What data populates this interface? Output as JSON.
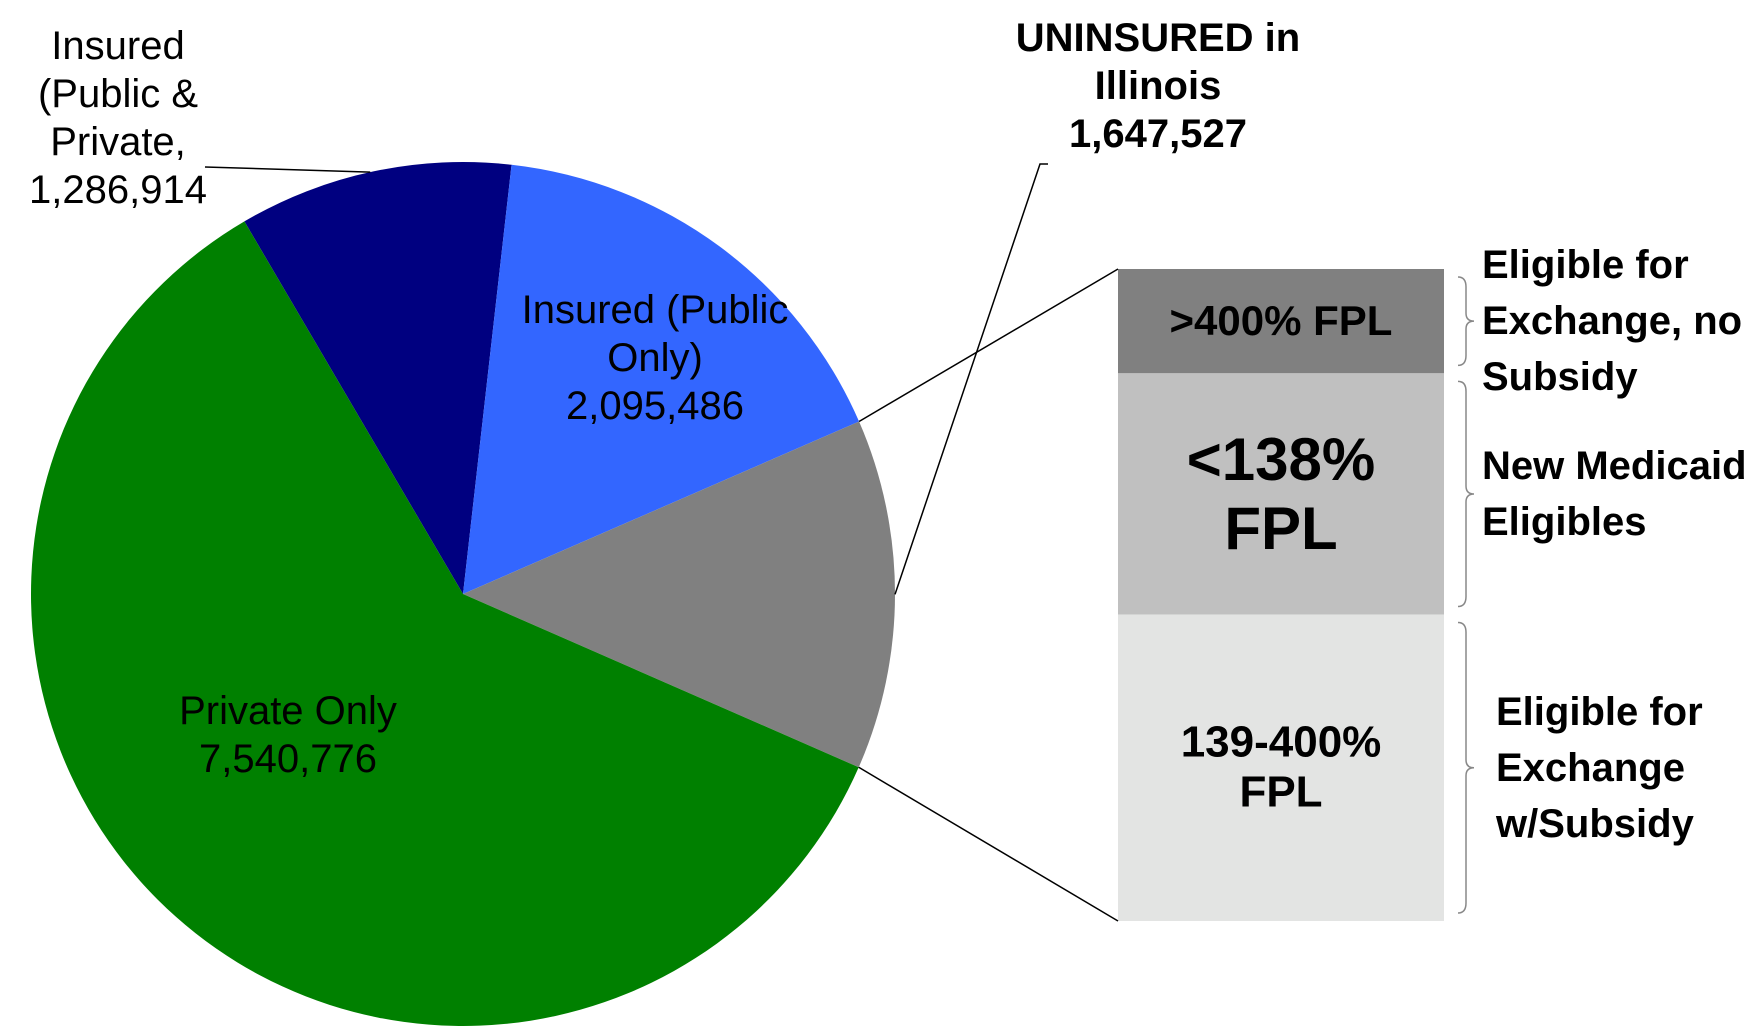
{
  "chart_data": {
    "type": "pie",
    "categories": [
      "Insured (Public & Private,",
      "Insured (Public Only)",
      "UNINSURED in Illinois",
      "Private Only"
    ],
    "values": [
      1286914,
      2095486,
      1647527,
      7540776
    ],
    "value_labels": [
      "1,286,914",
      "2,095,486",
      "1,647,527",
      "7,540,776"
    ],
    "colors": [
      "#000080",
      "#3366ff",
      "#808080",
      "#008000"
    ],
    "bar": {
      "categories": [
        ">400% FPL",
        "<138% FPL",
        "139-400% FPL"
      ],
      "values": [
        16,
        37,
        47
      ],
      "colors": [
        "#808080",
        "#c0c0c0",
        "#e3e4e3"
      ],
      "groups": [
        "Eligible for Exchange, no Subsidy",
        "New Medicaid Eligibles",
        "Eligible for Exchange w/Subsidy"
      ]
    }
  }
}
